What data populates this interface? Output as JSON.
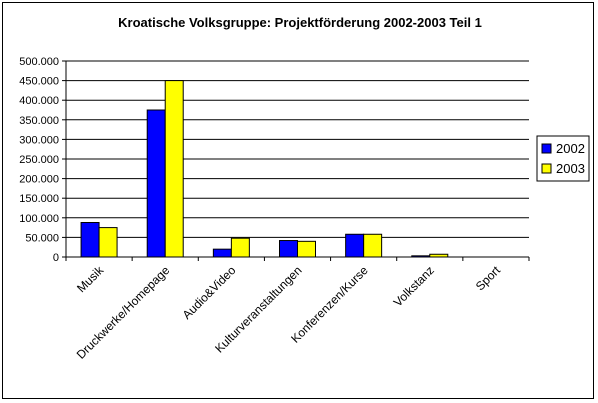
{
  "chart_data": {
    "type": "bar",
    "title": "Kroatische Volksgruppe: Projektförderung 2002-2003 Teil 1",
    "categories": [
      "Musik",
      "Druckwerke/Homepage",
      "Audio&Video",
      "Kulturveranstaltungen",
      "Konferenzen/Kurse",
      "Volkstanz",
      "Sport"
    ],
    "series": [
      {
        "name": "2002",
        "color": "#0000ff",
        "values": [
          88000,
          375000,
          20000,
          42000,
          58000,
          3000,
          0
        ]
      },
      {
        "name": "2003",
        "color": "#ffff00",
        "values": [
          75000,
          450000,
          48000,
          40000,
          58000,
          7000,
          0
        ]
      }
    ],
    "yticks": [
      "0",
      "50.000",
      "100.000",
      "150.000",
      "200.000",
      "250.000",
      "300.000",
      "350.000",
      "400.000",
      "450.000",
      "500.000"
    ],
    "ylim": [
      0,
      500000
    ],
    "grid": true,
    "legend_position": "right"
  }
}
